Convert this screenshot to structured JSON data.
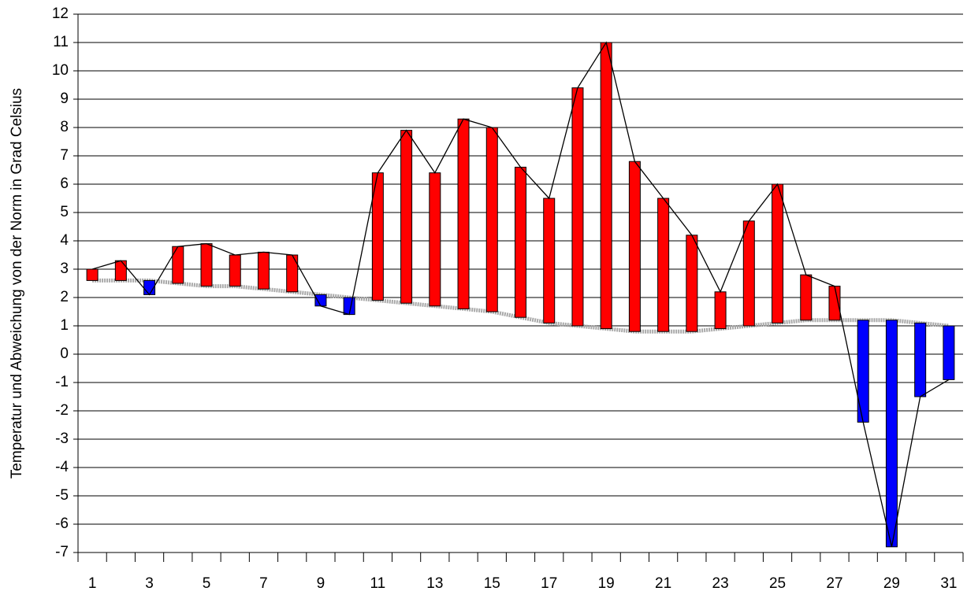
{
  "chart_data": {
    "type": "floating-bar",
    "y_label": "Temperatur und Abweichung von der Norm in Grad Celsius",
    "categories": [
      "1",
      null,
      "3",
      null,
      "5",
      null,
      "7",
      null,
      "9",
      null,
      "11",
      null,
      "13",
      null,
      "15",
      null,
      "17",
      null,
      "19",
      null,
      "21",
      null,
      "23",
      null,
      "25",
      null,
      "27",
      null,
      "29",
      null,
      "31"
    ],
    "series": [
      {
        "color": "#000000",
        "values": [
          3.0,
          3.3,
          2.1,
          3.8,
          3.9,
          3.5,
          3.6,
          3.5,
          1.7,
          1.4,
          6.4,
          7.9,
          6.4,
          8.3,
          8.0,
          6.6,
          5.5,
          9.4,
          11.0,
          6.8,
          5.5,
          4.2,
          2.2,
          4.7,
          6.0,
          2.8,
          2.4,
          -2.4,
          -6.8,
          -1.5,
          -0.9
        ]
      },
      {
        "color": "#a8a8a8",
        "values": [
          2.6,
          2.6,
          2.6,
          2.5,
          2.4,
          2.4,
          2.3,
          2.2,
          2.1,
          2.0,
          1.9,
          1.8,
          1.7,
          1.6,
          1.5,
          1.3,
          1.1,
          1.0,
          0.9,
          0.8,
          0.8,
          0.8,
          0.9,
          1.0,
          1.1,
          1.2,
          1.2,
          1.2,
          1.2,
          1.1,
          1.0
        ]
      }
    ],
    "above_color": "#ff0000",
    "below_color": "#0000ff",
    "ylim": [
      -7,
      12
    ],
    "yticks": [
      -7,
      -6,
      -5,
      -4,
      -3,
      -2,
      -1,
      0,
      1,
      2,
      3,
      4,
      5,
      6,
      7,
      8,
      9,
      10,
      11,
      12
    ],
    "grid": true
  }
}
